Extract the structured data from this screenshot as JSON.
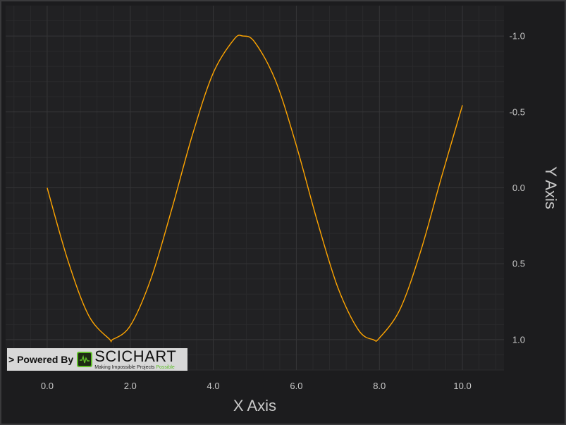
{
  "chart_data": {
    "type": "line",
    "title": "",
    "xlabel": "X Axis",
    "ylabel": "Y Axis",
    "xlim": [
      -1.0,
      11.0
    ],
    "ylim": [
      -1.2,
      1.2
    ],
    "y_reversed": true,
    "y_axis_position": "right",
    "grid": true,
    "x_ticks": [
      "0.0",
      "2.0",
      "4.0",
      "6.0",
      "8.0",
      "10.0"
    ],
    "x_tick_values": [
      0,
      2,
      4,
      6,
      8,
      10
    ],
    "y_ticks": [
      "-1.0",
      "-0.5",
      "0.0",
      "0.5",
      "1.0"
    ],
    "y_tick_values": [
      -1.0,
      -0.5,
      0.0,
      0.5,
      1.0
    ],
    "series": [
      {
        "color": "#ffa500",
        "x": [
          0.0,
          0.5,
          1.0,
          1.5,
          1.571,
          2.0,
          2.5,
          3.0,
          3.5,
          4.0,
          4.5,
          4.712,
          5.0,
          5.5,
          6.0,
          6.5,
          7.0,
          7.5,
          7.854,
          8.0,
          8.5,
          9.0,
          9.5,
          10.0
        ],
        "y": [
          0.0,
          0.479,
          0.841,
          0.997,
          1.0,
          0.909,
          0.598,
          0.141,
          -0.351,
          -0.757,
          -0.978,
          -1.0,
          -0.959,
          -0.706,
          -0.279,
          0.215,
          0.657,
          0.938,
          1.0,
          0.989,
          0.798,
          0.412,
          -0.075,
          -0.544
        ]
      }
    ]
  },
  "watermark": {
    "prefix": "> Powered By",
    "brand": "SCICHART",
    "tagline": "Making Impossible Projects",
    "tagline_accent": "Possible",
    "accent_color": "#5fbf2a"
  },
  "theme": {
    "background": "#1c1c1e",
    "plot_background": "#212123",
    "grid_major": "#353537",
    "grid_minor": "#2a2a2c",
    "text": "#c8c8c8"
  }
}
